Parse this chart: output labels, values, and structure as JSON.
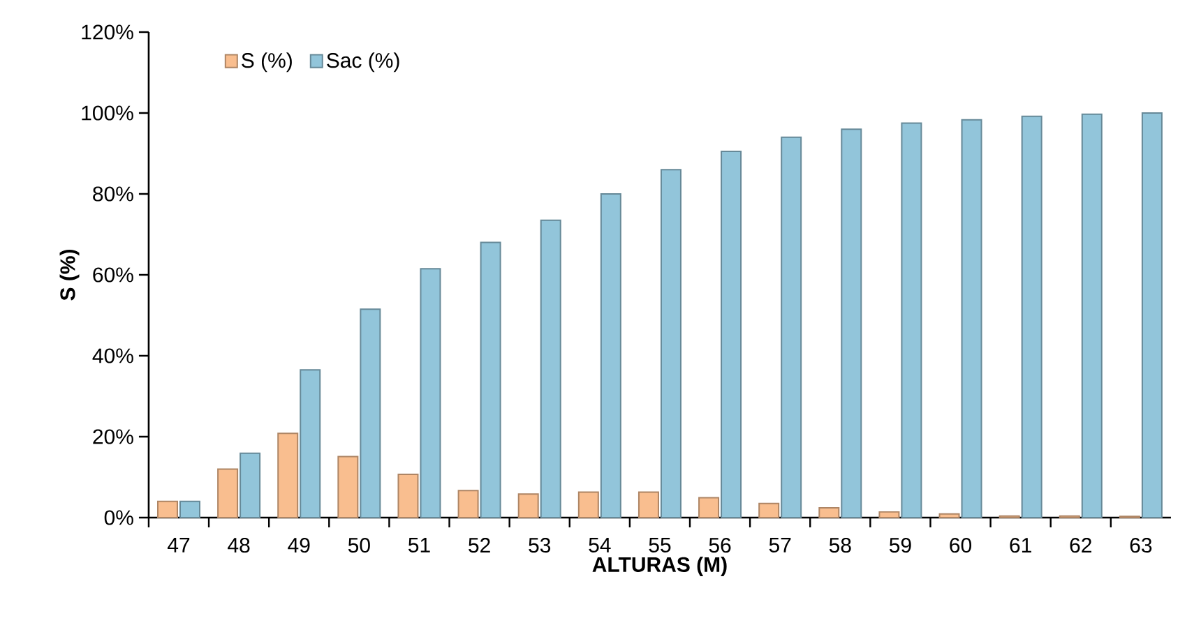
{
  "chart_data": {
    "type": "bar",
    "xlabel": "ALTURAS (M)",
    "ylabel": "S (%)",
    "categories": [
      "47",
      "48",
      "49",
      "50",
      "51",
      "52",
      "53",
      "54",
      "55",
      "56",
      "57",
      "58",
      "59",
      "60",
      "61",
      "62",
      "63"
    ],
    "series": [
      {
        "name": "S (%)",
        "color": "#f9be8f",
        "values": [
          4.0,
          12,
          20.8,
          15.1,
          10.7,
          6.7,
          5.8,
          6.3,
          6.3,
          4.9,
          3.5,
          2.4,
          1.4,
          0.9,
          0.4,
          0.4,
          0.3
        ]
      },
      {
        "name": "Sac (%)",
        "color": "#92c5da",
        "values": [
          4.0,
          15.9,
          36.5,
          51.5,
          61.5,
          68,
          73.5,
          80,
          86,
          90.5,
          94,
          96,
          97.5,
          98.3,
          99.2,
          99.7,
          100
        ]
      }
    ],
    "ylim": [
      0,
      120
    ],
    "yticks": [
      {
        "value": 0,
        "label": "0%"
      },
      {
        "value": 20,
        "label": "20%"
      },
      {
        "value": 40,
        "label": "40%"
      },
      {
        "value": 60,
        "label": "60%"
      },
      {
        "value": 80,
        "label": "80%"
      },
      {
        "value": 100,
        "label": "100%"
      },
      {
        "value": 120,
        "label": "120%"
      }
    ],
    "legend": "top left",
    "grid": false
  }
}
